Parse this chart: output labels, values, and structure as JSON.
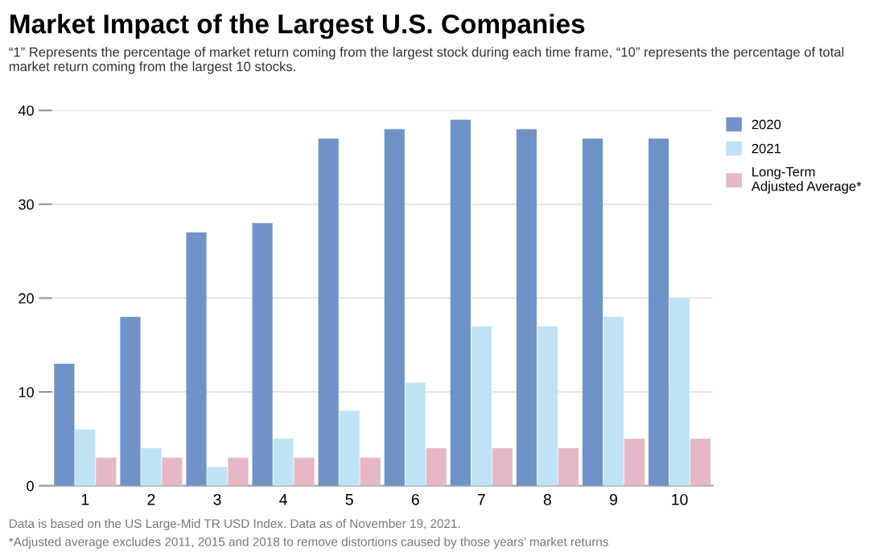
{
  "chart_data": {
    "type": "bar",
    "title": "Market Impact of the Largest U.S. Companies",
    "subtitle": "“1” Represents the percentage of market return coming from the largest stock during each time frame, “10” represents the percentage of total market return coming from the largest 10 stocks.",
    "categories": [
      "1",
      "2",
      "3",
      "4",
      "5",
      "6",
      "7",
      "8",
      "9",
      "10"
    ],
    "series": [
      {
        "name": "2020",
        "color": "#6f93c6",
        "values": [
          13,
          18,
          27,
          28,
          37,
          38,
          39,
          38,
          37,
          37
        ]
      },
      {
        "name": "2021",
        "color": "#bfe3f5",
        "values": [
          6,
          4,
          2,
          5,
          8,
          11,
          17,
          17,
          18,
          20
        ]
      },
      {
        "name": "Long-Term\nAdjusted Average*",
        "color": "#e6b8c6",
        "values": [
          3,
          3,
          3,
          3,
          3,
          4,
          4,
          4,
          5,
          5
        ]
      }
    ],
    "ylim": [
      0,
      40
    ],
    "yticks": [
      0,
      10,
      20,
      30,
      40
    ],
    "grid": "y",
    "legend": "right",
    "annotations": [
      "Data is based on the US Large-Mid TR USD Index. Data as of November 19, 2021.",
      "*Adjusted average excludes 2011, 2015 and 2018 to remove distortions caused by those years’ market returns"
    ]
  }
}
